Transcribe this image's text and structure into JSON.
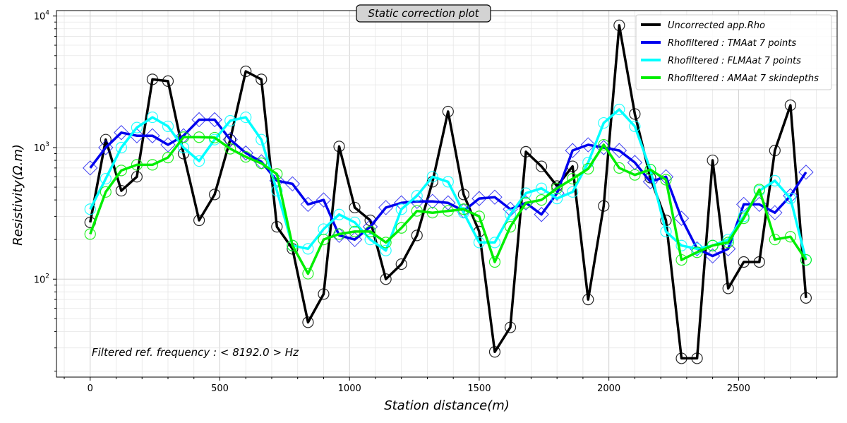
{
  "chart_data": {
    "type": "line",
    "title": "Static correction plot",
    "xlabel": "Station distance(m)",
    "ylabel": "Resistivity(Ω.m)",
    "xlim": [
      -130,
      2880
    ],
    "ylim": [
      18,
      11000
    ],
    "yscale": "log",
    "grid": true,
    "legend_position": "top-right",
    "x_ticks": [
      0,
      500,
      1000,
      1500,
      2000,
      2500
    ],
    "y_ticks": [
      {
        "value": 100,
        "base": "10",
        "exp": "2"
      },
      {
        "value": 1000,
        "base": "10",
        "exp": "3"
      },
      {
        "value": 10000,
        "base": "10",
        "exp": "4"
      }
    ],
    "annotation": "Filtered ref. frequency : < 8192.0 > Hz",
    "x": [
      0,
      60,
      120,
      180,
      240,
      300,
      360,
      420,
      480,
      540,
      600,
      660,
      720,
      780,
      840,
      900,
      960,
      1020,
      1080,
      1140,
      1200,
      1260,
      1320,
      1380,
      1440,
      1500,
      1560,
      1620,
      1680,
      1740,
      1800,
      1860,
      1920,
      1980,
      2040,
      2100,
      2160,
      2220,
      2280,
      2340,
      2400,
      2460,
      2520,
      2580,
      2640,
      2700,
      2760
    ],
    "series": [
      {
        "name": "Uncorrected app.Rho",
        "color": "#000000",
        "marker": "circle",
        "values": [
          270,
          1150,
          470,
          600,
          3300,
          3200,
          900,
          280,
          440,
          1150,
          3800,
          3300,
          250,
          170,
          47,
          77,
          1020,
          350,
          280,
          100,
          130,
          215,
          550,
          1880,
          440,
          230,
          28,
          43,
          930,
          720,
          510,
          720,
          70,
          360,
          8500,
          1800,
          590,
          280,
          25,
          25,
          800,
          85,
          135,
          135,
          950,
          2100,
          72
        ]
      },
      {
        "name": "Rhofiltered : TMAat 7 points",
        "color": "#0000ee",
        "marker": "diamond",
        "values": [
          700,
          1000,
          1300,
          1230,
          1230,
          1050,
          1230,
          1630,
          1630,
          1150,
          910,
          780,
          560,
          530,
          370,
          400,
          215,
          200,
          250,
          350,
          380,
          390,
          390,
          380,
          330,
          410,
          420,
          340,
          380,
          310,
          450,
          950,
          1050,
          1000,
          950,
          770,
          550,
          600,
          290,
          170,
          150,
          170,
          370,
          370,
          320,
          430,
          650
        ]
      },
      {
        "name": "Rhofiltered : FLMAat 7 points",
        "color": "#00ffff",
        "marker": "circle",
        "values": [
          340,
          580,
          1000,
          1420,
          1700,
          1450,
          1000,
          790,
          1150,
          1600,
          1700,
          1150,
          470,
          180,
          170,
          240,
          310,
          270,
          200,
          165,
          340,
          430,
          600,
          550,
          320,
          190,
          190,
          310,
          450,
          490,
          410,
          460,
          770,
          1540,
          1950,
          1450,
          680,
          230,
          180,
          170,
          180,
          200,
          300,
          470,
          560,
          410,
          140
        ]
      },
      {
        "name": "Rhofiltered : AMAat 7 skindepths",
        "color": "#00ee00",
        "marker": "circle",
        "values": [
          220,
          460,
          670,
          740,
          740,
          840,
          1200,
          1200,
          1190,
          980,
          850,
          760,
          630,
          180,
          110,
          200,
          220,
          230,
          230,
          190,
          245,
          330,
          320,
          330,
          340,
          300,
          135,
          250,
          380,
          400,
          490,
          580,
          690,
          1050,
          700,
          620,
          680,
          570,
          140,
          160,
          180,
          190,
          290,
          480,
          200,
          210,
          140
        ]
      }
    ]
  }
}
